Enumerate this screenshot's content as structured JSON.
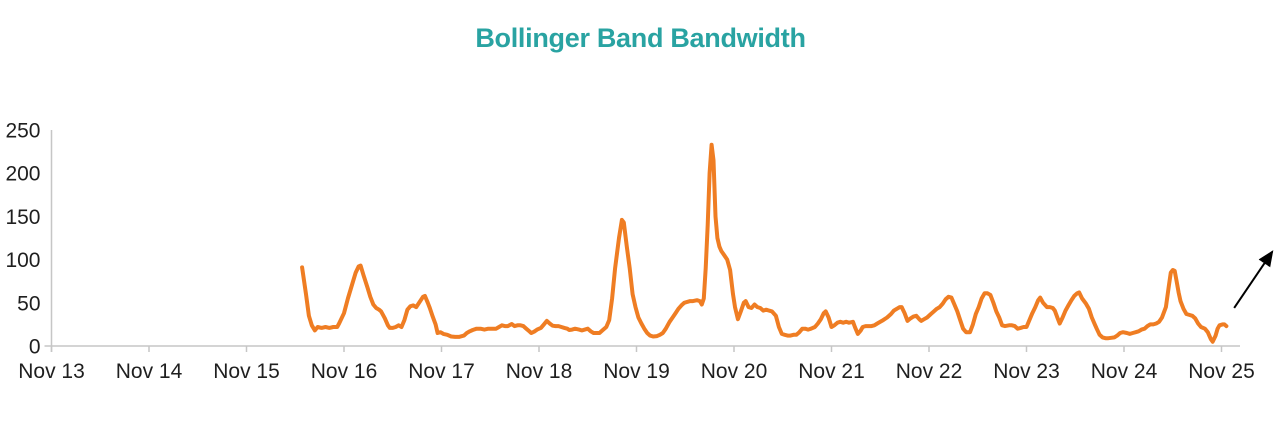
{
  "page": {
    "background": "#ffffff"
  },
  "chart_data": {
    "type": "line",
    "title": "Bollinger Band Bandwidth",
    "title_color": "#29A3A2",
    "xlabel": "",
    "ylabel": "",
    "legend": "none",
    "grid": false,
    "axis_color": "#c6c6c6",
    "label_color": "#1f1f1f",
    "x_axis": {
      "tick_labels": [
        "Nov 13",
        "Nov 14",
        "Nov 15",
        "Nov 16",
        "Nov 17",
        "Nov 18",
        "Nov 19",
        "Nov 20",
        "Nov 21",
        "Nov 22",
        "Nov 23",
        "Nov 24",
        "Nov 25"
      ],
      "unit": "days_from_Nov_13",
      "range": [
        0,
        12.2
      ]
    },
    "y_axis": {
      "tick_values": [
        0,
        50,
        100,
        150,
        200,
        250
      ],
      "tick_labels": [
        "0",
        "50",
        "100",
        "150",
        "200",
        "250"
      ],
      "range": [
        0,
        250
      ]
    },
    "series": [
      {
        "name": "Bollinger Band Bandwidth",
        "color": "#EF7D23",
        "stroke_width": 4,
        "points": [
          [
            2.57,
            91
          ],
          [
            2.61,
            60
          ],
          [
            2.64,
            35
          ],
          [
            2.67,
            24
          ],
          [
            2.7,
            18
          ],
          [
            2.73,
            22
          ],
          [
            2.77,
            21
          ],
          [
            2.81,
            22
          ],
          [
            2.85,
            21
          ],
          [
            2.89,
            22
          ],
          [
            2.93,
            22
          ],
          [
            2.95,
            26
          ],
          [
            3.0,
            38
          ],
          [
            3.04,
            55
          ],
          [
            3.08,
            70
          ],
          [
            3.12,
            85
          ],
          [
            3.15,
            92
          ],
          [
            3.17,
            93
          ],
          [
            3.2,
            82
          ],
          [
            3.24,
            68
          ],
          [
            3.27,
            57
          ],
          [
            3.3,
            48
          ],
          [
            3.33,
            44
          ],
          [
            3.36,
            42
          ],
          [
            3.38,
            40
          ],
          [
            3.42,
            32
          ],
          [
            3.45,
            24
          ],
          [
            3.47,
            21
          ],
          [
            3.5,
            21
          ],
          [
            3.53,
            22
          ],
          [
            3.56,
            24
          ],
          [
            3.59,
            22
          ],
          [
            3.62,
            30
          ],
          [
            3.65,
            42
          ],
          [
            3.68,
            46
          ],
          [
            3.71,
            47
          ],
          [
            3.74,
            45
          ],
          [
            3.77,
            50
          ],
          [
            3.81,
            57
          ],
          [
            3.83,
            58
          ],
          [
            3.86,
            50
          ],
          [
            3.88,
            44
          ],
          [
            3.91,
            34
          ],
          [
            3.94,
            25
          ],
          [
            3.96,
            15
          ],
          [
            3.99,
            16
          ],
          [
            4.02,
            14
          ],
          [
            4.06,
            13
          ],
          [
            4.1,
            11
          ],
          [
            4.14,
            10.5
          ],
          [
            4.18,
            10.5
          ],
          [
            4.23,
            12
          ],
          [
            4.26,
            15
          ],
          [
            4.29,
            17
          ],
          [
            4.32,
            18.5
          ],
          [
            4.36,
            20
          ],
          [
            4.4,
            20
          ],
          [
            4.44,
            19
          ],
          [
            4.48,
            20
          ],
          [
            4.52,
            20
          ],
          [
            4.56,
            20
          ],
          [
            4.59,
            22
          ],
          [
            4.62,
            24
          ],
          [
            4.65,
            23
          ],
          [
            4.68,
            23
          ],
          [
            4.72,
            25.5
          ],
          [
            4.75,
            23
          ],
          [
            4.78,
            24
          ],
          [
            4.81,
            24
          ],
          [
            4.84,
            23
          ],
          [
            4.87,
            20
          ],
          [
            4.9,
            17
          ],
          [
            4.92,
            15
          ],
          [
            4.95,
            16.5
          ],
          [
            4.98,
            19
          ],
          [
            5.02,
            21
          ],
          [
            5.05,
            25
          ],
          [
            5.08,
            29
          ],
          [
            5.11,
            26
          ],
          [
            5.14,
            23.5
          ],
          [
            5.17,
            23
          ],
          [
            5.2,
            23
          ],
          [
            5.23,
            22
          ],
          [
            5.26,
            21
          ],
          [
            5.29,
            20
          ],
          [
            5.31,
            18.5
          ],
          [
            5.34,
            19
          ],
          [
            5.37,
            20
          ],
          [
            5.41,
            19
          ],
          [
            5.44,
            18
          ],
          [
            5.47,
            19
          ],
          [
            5.5,
            20
          ],
          [
            5.53,
            17
          ],
          [
            5.56,
            15
          ],
          [
            5.59,
            15
          ],
          [
            5.62,
            15
          ],
          [
            5.65,
            18
          ],
          [
            5.69,
            22
          ],
          [
            5.72,
            30
          ],
          [
            5.75,
            55
          ],
          [
            5.78,
            90
          ],
          [
            5.82,
            125
          ],
          [
            5.85,
            146
          ],
          [
            5.87,
            143
          ],
          [
            5.9,
            115
          ],
          [
            5.93,
            90
          ],
          [
            5.96,
            60
          ],
          [
            5.99,
            45
          ],
          [
            6.02,
            33
          ],
          [
            6.05,
            26
          ],
          [
            6.08,
            20
          ],
          [
            6.11,
            15
          ],
          [
            6.14,
            12
          ],
          [
            6.17,
            11
          ],
          [
            6.21,
            11.5
          ],
          [
            6.24,
            13
          ],
          [
            6.27,
            15
          ],
          [
            6.3,
            20
          ],
          [
            6.34,
            28
          ],
          [
            6.37,
            33
          ],
          [
            6.4,
            38
          ],
          [
            6.43,
            43
          ],
          [
            6.46,
            47
          ],
          [
            6.49,
            50
          ],
          [
            6.52,
            51
          ],
          [
            6.55,
            52
          ],
          [
            6.58,
            52
          ],
          [
            6.62,
            53
          ],
          [
            6.65,
            52
          ],
          [
            6.67,
            48
          ],
          [
            6.69,
            55
          ],
          [
            6.71,
            90
          ],
          [
            6.73,
            140
          ],
          [
            6.75,
            200
          ],
          [
            6.77,
            233
          ],
          [
            6.79,
            215
          ],
          [
            6.81,
            150
          ],
          [
            6.83,
            125
          ],
          [
            6.85,
            115
          ],
          [
            6.87,
            110
          ],
          [
            6.9,
            105
          ],
          [
            6.93,
            100
          ],
          [
            6.96,
            88
          ],
          [
            6.99,
            60
          ],
          [
            7.01,
            45
          ],
          [
            7.04,
            31
          ],
          [
            7.07,
            40
          ],
          [
            7.1,
            50
          ],
          [
            7.12,
            52
          ],
          [
            7.15,
            45
          ],
          [
            7.18,
            44
          ],
          [
            7.21,
            48
          ],
          [
            7.24,
            45
          ],
          [
            7.27,
            44
          ],
          [
            7.3,
            41
          ],
          [
            7.33,
            42
          ],
          [
            7.36,
            41
          ],
          [
            7.39,
            40
          ],
          [
            7.43,
            35
          ],
          [
            7.46,
            22
          ],
          [
            7.49,
            14
          ],
          [
            7.52,
            13
          ],
          [
            7.55,
            12
          ],
          [
            7.58,
            12
          ],
          [
            7.61,
            13
          ],
          [
            7.64,
            13
          ],
          [
            7.67,
            16
          ],
          [
            7.7,
            20
          ],
          [
            7.73,
            20
          ],
          [
            7.76,
            19
          ],
          [
            7.79,
            20
          ],
          [
            7.83,
            22
          ],
          [
            7.86,
            26
          ],
          [
            7.89,
            31
          ],
          [
            7.92,
            38
          ],
          [
            7.94,
            40
          ],
          [
            7.97,
            33
          ],
          [
            8.0,
            22
          ],
          [
            8.03,
            24
          ],
          [
            8.06,
            27
          ],
          [
            8.09,
            28
          ],
          [
            8.12,
            27
          ],
          [
            8.15,
            28
          ],
          [
            8.18,
            27
          ],
          [
            8.22,
            28
          ],
          [
            8.24,
            22
          ],
          [
            8.27,
            14
          ],
          [
            8.3,
            18
          ],
          [
            8.32,
            22
          ],
          [
            8.35,
            23
          ],
          [
            8.38,
            23
          ],
          [
            8.41,
            23
          ],
          [
            8.44,
            24
          ],
          [
            8.47,
            26
          ],
          [
            8.5,
            28
          ],
          [
            8.53,
            30
          ],
          [
            8.57,
            33
          ],
          [
            8.61,
            37
          ],
          [
            8.64,
            41
          ],
          [
            8.67,
            43
          ],
          [
            8.7,
            45
          ],
          [
            8.72,
            45
          ],
          [
            8.75,
            38
          ],
          [
            8.78,
            29
          ],
          [
            8.81,
            32
          ],
          [
            8.84,
            34
          ],
          [
            8.87,
            35
          ],
          [
            8.9,
            31
          ],
          [
            8.92,
            29
          ],
          [
            8.95,
            31
          ],
          [
            8.98,
            33
          ],
          [
            9.02,
            37
          ],
          [
            9.05,
            40
          ],
          [
            9.08,
            43
          ],
          [
            9.11,
            45
          ],
          [
            9.14,
            49
          ],
          [
            9.17,
            54
          ],
          [
            9.2,
            57
          ],
          [
            9.23,
            56
          ],
          [
            9.26,
            48
          ],
          [
            9.29,
            40
          ],
          [
            9.32,
            30
          ],
          [
            9.35,
            20
          ],
          [
            9.38,
            16
          ],
          [
            9.42,
            16
          ],
          [
            9.45,
            25
          ],
          [
            9.48,
            37
          ],
          [
            9.51,
            45
          ],
          [
            9.54,
            55
          ],
          [
            9.57,
            61
          ],
          [
            9.6,
            61
          ],
          [
            9.63,
            59
          ],
          [
            9.66,
            50
          ],
          [
            9.69,
            40
          ],
          [
            9.72,
            33
          ],
          [
            9.75,
            24
          ],
          [
            9.78,
            23
          ],
          [
            9.82,
            24
          ],
          [
            9.85,
            24
          ],
          [
            9.88,
            23
          ],
          [
            9.91,
            20
          ],
          [
            9.94,
            21
          ],
          [
            9.97,
            22
          ],
          [
            10.0,
            22
          ],
          [
            10.03,
            30
          ],
          [
            10.06,
            38
          ],
          [
            10.09,
            45
          ],
          [
            10.12,
            53
          ],
          [
            10.14,
            56
          ],
          [
            10.17,
            50
          ],
          [
            10.21,
            45
          ],
          [
            10.24,
            45
          ],
          [
            10.27,
            44
          ],
          [
            10.29,
            41
          ],
          [
            10.32,
            32
          ],
          [
            10.34,
            26
          ],
          [
            10.37,
            33
          ],
          [
            10.4,
            41
          ],
          [
            10.43,
            47
          ],
          [
            10.46,
            53
          ],
          [
            10.49,
            58
          ],
          [
            10.52,
            61
          ],
          [
            10.54,
            62
          ],
          [
            10.57,
            55
          ],
          [
            10.61,
            49
          ],
          [
            10.64,
            43
          ],
          [
            10.67,
            33
          ],
          [
            10.7,
            25
          ],
          [
            10.72,
            20
          ],
          [
            10.75,
            13
          ],
          [
            10.78,
            10
          ],
          [
            10.81,
            9
          ],
          [
            10.84,
            9
          ],
          [
            10.87,
            9.5
          ],
          [
            10.9,
            10
          ],
          [
            10.93,
            12
          ],
          [
            10.96,
            15
          ],
          [
            10.99,
            16
          ],
          [
            11.03,
            15
          ],
          [
            11.06,
            14
          ],
          [
            11.09,
            15
          ],
          [
            11.12,
            16
          ],
          [
            11.15,
            17
          ],
          [
            11.18,
            19
          ],
          [
            11.21,
            20
          ],
          [
            11.24,
            23
          ],
          [
            11.27,
            25
          ],
          [
            11.3,
            25
          ],
          [
            11.33,
            26
          ],
          [
            11.36,
            28
          ],
          [
            11.39,
            33
          ],
          [
            11.43,
            45
          ],
          [
            11.46,
            70
          ],
          [
            11.48,
            85
          ],
          [
            11.5,
            88
          ],
          [
            11.52,
            87
          ],
          [
            11.54,
            75
          ],
          [
            11.56,
            62
          ],
          [
            11.58,
            52
          ],
          [
            11.61,
            43
          ],
          [
            11.64,
            37
          ],
          [
            11.67,
            36
          ],
          [
            11.7,
            35
          ],
          [
            11.73,
            32
          ],
          [
            11.76,
            26
          ],
          [
            11.79,
            22
          ],
          [
            11.83,
            20
          ],
          [
            11.86,
            16
          ],
          [
            11.89,
            8
          ],
          [
            11.91,
            5
          ],
          [
            11.94,
            12
          ],
          [
            11.96,
            20
          ],
          [
            11.98,
            24
          ],
          [
            12.01,
            25
          ],
          [
            12.03,
            25
          ],
          [
            12.05,
            23
          ]
        ]
      }
    ],
    "annotations": [
      {
        "type": "arrow",
        "color": "#000000",
        "from": [
          12.13,
          44
        ],
        "to": [
          12.52,
          109
        ],
        "meaning": "upward-trend-arrow"
      }
    ]
  }
}
